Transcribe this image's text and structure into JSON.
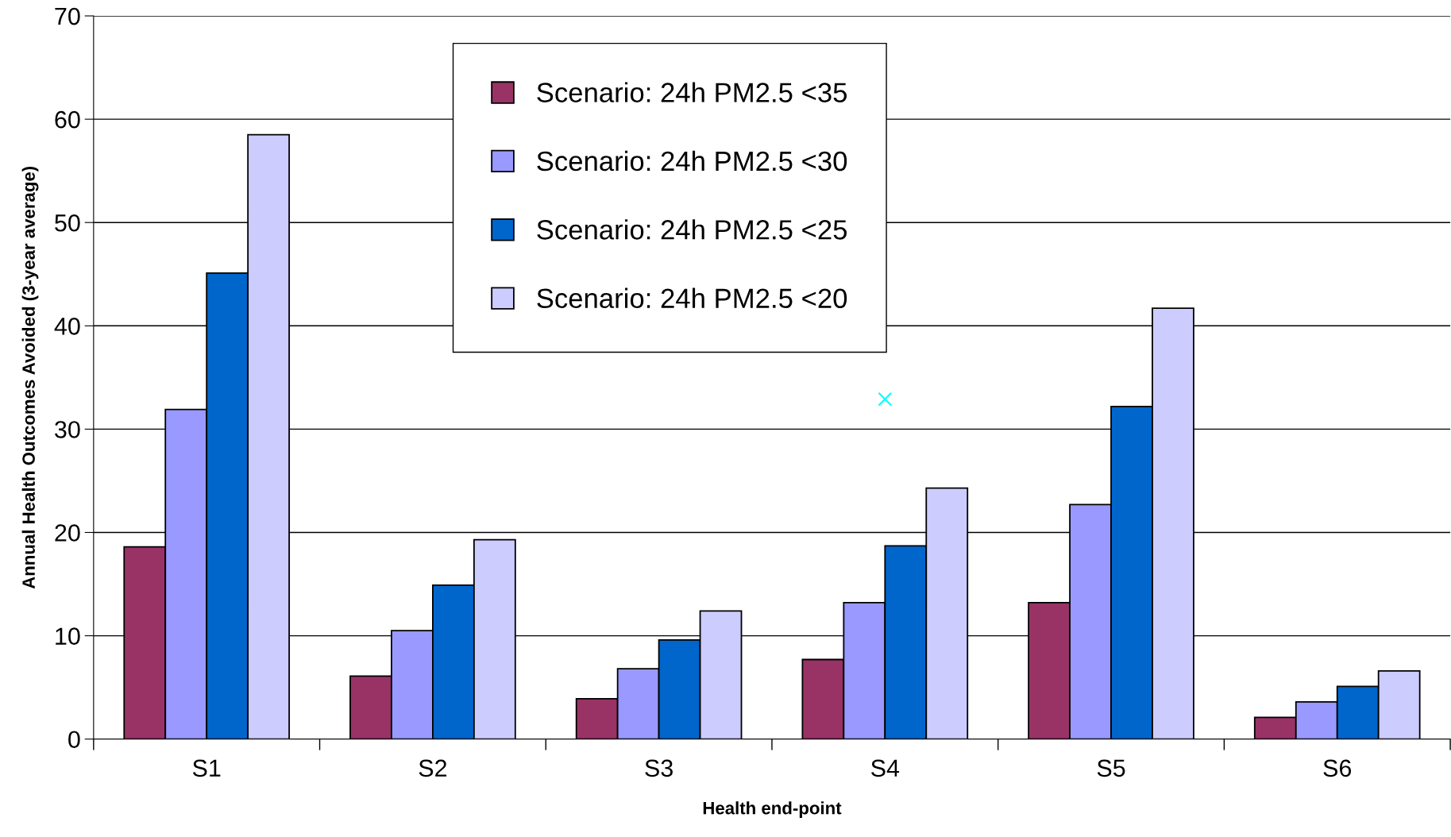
{
  "chart_data": {
    "type": "bar",
    "xlabel": "Health end-point",
    "ylabel": "Annual Health Outcomes Avoided (3-year average)",
    "categories": [
      "S1",
      "S2",
      "S3",
      "S4",
      "S5",
      "S6"
    ],
    "series": [
      {
        "name": "Scenario: 24h PM2.5 <35",
        "color": "#993366",
        "values": [
          18.6,
          6.1,
          3.9,
          7.7,
          13.2,
          2.1
        ]
      },
      {
        "name": "Scenario: 24h PM2.5 <30",
        "color": "#9999ff",
        "values": [
          31.9,
          10.5,
          6.8,
          13.2,
          22.7,
          3.6
        ]
      },
      {
        "name": "Scenario: 24h PM2.5 <25",
        "color": "#0066cc",
        "values": [
          45.1,
          14.9,
          9.6,
          18.7,
          32.2,
          5.1
        ]
      },
      {
        "name": "Scenario: 24h PM2.5 <20",
        "color": "#ccccff",
        "values": [
          58.5,
          19.3,
          12.4,
          24.3,
          41.7,
          6.6
        ]
      },
      {
        "type": "scatter",
        "color": "#00ffff",
        "marker": "cross",
        "x": [
          "S4"
        ],
        "values": [
          32.9
        ]
      }
    ],
    "ylim": [
      0,
      70
    ],
    "yticks": [
      0,
      10,
      20,
      30,
      40,
      50,
      60,
      70
    ],
    "grid": "y",
    "legend": "top left"
  }
}
